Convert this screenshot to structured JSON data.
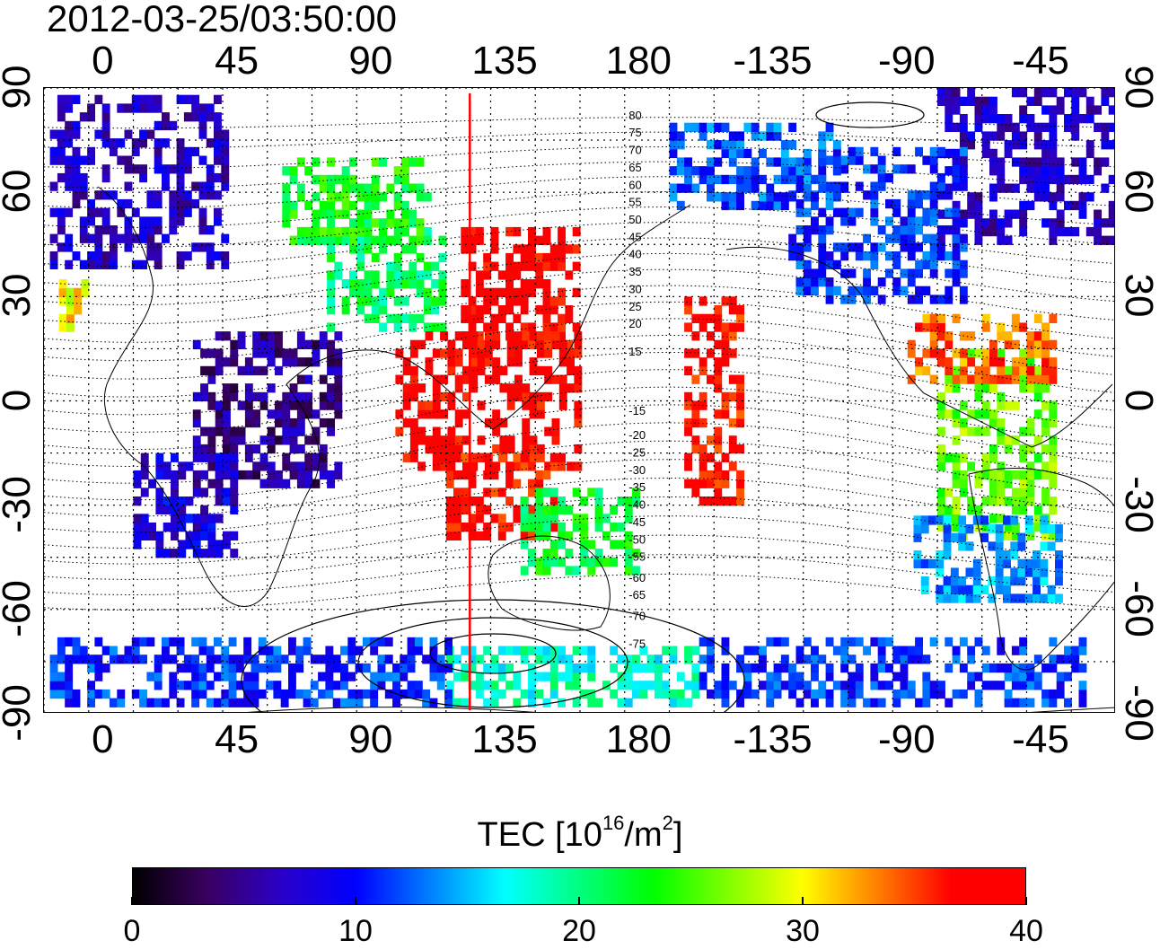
{
  "map": {
    "timestamp": "2012-03-25/03:50:00",
    "lon_ticks": [
      {
        "label": "0",
        "lon": 0
      },
      {
        "label": "45",
        "lon": 45
      },
      {
        "label": "90",
        "lon": 90
      },
      {
        "label": "135",
        "lon": 135
      },
      {
        "label": "180",
        "lon": 180
      },
      {
        "label": "-135",
        "lon": 225
      },
      {
        "label": "-90",
        "lon": 270
      },
      {
        "label": "-45",
        "lon": 315
      }
    ],
    "lat_ticks": [
      {
        "label": "90",
        "lat": 90
      },
      {
        "label": "60",
        "lat": 60
      },
      {
        "label": "30",
        "lat": 30
      },
      {
        "label": "0",
        "lat": 0
      },
      {
        "label": "-30",
        "lat": -30
      },
      {
        "label": "-60",
        "lat": -60
      },
      {
        "label": "-90",
        "lat": -90
      }
    ],
    "lon_range": [
      -20,
      340
    ],
    "lat_range": [
      -90,
      90
    ],
    "grid": "dotted, 15 degree spacing",
    "marker_line_lon": 123,
    "marker_line_color": "#ff0000",
    "contour_labels": [
      {
        "text": "80",
        "lat": 81
      },
      {
        "text": "75",
        "lat": 76
      },
      {
        "text": "70",
        "lat": 71
      },
      {
        "text": "65",
        "lat": 66
      },
      {
        "text": "60",
        "lat": 61
      },
      {
        "text": "55",
        "lat": 56
      },
      {
        "text": "50",
        "lat": 51
      },
      {
        "text": "45",
        "lat": 46
      },
      {
        "text": "40",
        "lat": 41
      },
      {
        "text": "35",
        "lat": 36
      },
      {
        "text": "30",
        "lat": 31
      },
      {
        "text": "25",
        "lat": 26
      },
      {
        "text": "20",
        "lat": 21
      },
      {
        "text": "15",
        "lat": 13
      },
      {
        "text": "-15",
        "lat": -4
      },
      {
        "text": "-20",
        "lat": -11
      },
      {
        "text": "-25",
        "lat": -16
      },
      {
        "text": "-30",
        "lat": -21
      },
      {
        "text": "-35",
        "lat": -26
      },
      {
        "text": "-40",
        "lat": -31
      },
      {
        "text": "-45",
        "lat": -36
      },
      {
        "text": "-50",
        "lat": -41
      },
      {
        "text": "-55",
        "lat": -46
      },
      {
        "text": "-60",
        "lat": -52
      },
      {
        "text": "-65",
        "lat": -57
      },
      {
        "text": "-70",
        "lat": -63
      },
      {
        "text": "-75",
        "lat": -71
      }
    ],
    "contour_label_lon": 180,
    "tec_regions": [
      {
        "lon": [
          -18,
          40
        ],
        "lat": [
          38,
          88
        ],
        "tec": 7
      },
      {
        "lon": [
          280,
          340
        ],
        "lat": [
          45,
          88
        ],
        "tec": 7
      },
      {
        "lon": [
          230,
          290
        ],
        "lat": [
          28,
          72
        ],
        "tec": 11
      },
      {
        "lon": [
          190,
          250
        ],
        "lat": [
          55,
          80
        ],
        "tec": 12
      },
      {
        "lon": [
          30,
          80
        ],
        "lat": [
          -25,
          20
        ],
        "tec": 5
      },
      {
        "lon": [
          10,
          45
        ],
        "lat": [
          -45,
          -15
        ],
        "tec": 8
      },
      {
        "lon": [
          75,
          115
        ],
        "lat": [
          20,
          50
        ],
        "tec": 21
      },
      {
        "lon": [
          60,
          110
        ],
        "lat": [
          45,
          68
        ],
        "tec": 23
      },
      {
        "lon": [
          120,
          160
        ],
        "lat": [
          15,
          50
        ],
        "tec": 38
      },
      {
        "lon": [
          98,
          160
        ],
        "lat": [
          -20,
          20
        ],
        "tec": 38
      },
      {
        "lon": [
          115,
          155
        ],
        "lat": [
          -40,
          -15
        ],
        "tec": 37
      },
      {
        "lon": [
          140,
          180
        ],
        "lat": [
          -50,
          -25
        ],
        "tec": 22
      },
      {
        "lon": [
          195,
          215
        ],
        "lat": [
          -30,
          30
        ],
        "tec": 37
      },
      {
        "lon": [
          280,
          320
        ],
        "lat": [
          -40,
          15
        ],
        "tec": 26
      },
      {
        "lon": [
          272,
          320
        ],
        "lat": [
          -58,
          -35
        ],
        "tec": 14
      },
      {
        "lon": [
          270,
          320
        ],
        "lat": [
          5,
          25
        ],
        "tec": 34
      },
      {
        "lon": [
          115,
          200
        ],
        "lat": [
          -88,
          -72
        ],
        "tec": 18
      },
      {
        "lon": [
          200,
          330
        ],
        "lat": [
          -88,
          -68
        ],
        "tec": 11
      },
      {
        "lon": [
          -18,
          115
        ],
        "lat": [
          -88,
          -70
        ],
        "tec": 11
      },
      {
        "lon": [
          -15,
          -5
        ],
        "lat": [
          20,
          35
        ],
        "tec": 30
      }
    ]
  },
  "colorbar": {
    "title": "TEC  [10",
    "title_exponent": "16",
    "title_unit": "/m",
    "title_unit_exponent": "2",
    "title_close": "]",
    "min": 0,
    "max": 40,
    "ticks": [
      {
        "label": "0",
        "value": 0
      },
      {
        "label": "10",
        "value": 10
      },
      {
        "label": "20",
        "value": 20
      },
      {
        "label": "30",
        "value": 30
      },
      {
        "label": "40",
        "value": 40
      }
    ],
    "colors": [
      "#000000",
      "#3a0060",
      "#2a00c8",
      "#0000ff",
      "#0080ff",
      "#00ffff",
      "#00ff80",
      "#00ff00",
      "#80ff00",
      "#ffff00",
      "#ff8000",
      "#ff0000",
      "#ff0000"
    ]
  }
}
